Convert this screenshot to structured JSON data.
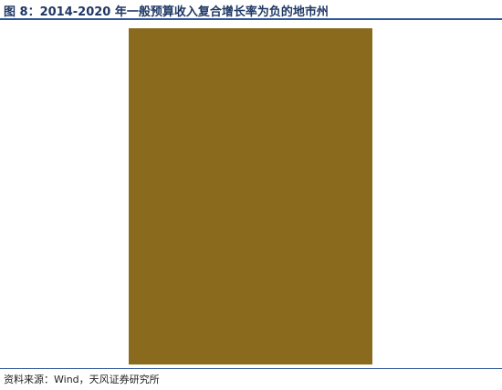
{
  "title": "图 8：2014-2020 年一般预算收入复合增长率为负的地市州",
  "source": "资料来源：Wind，天风证券研究所",
  "colors": {
    "header_bg": "#8a6b1d",
    "frame": "#8a6b1d",
    "high": "#e8463a",
    "mid": "#fff2a8",
    "low": "#f6c7a4",
    "green": "#63be7b",
    "accent_line": "#2f5597"
  },
  "chart_data": {
    "type": "table",
    "title": "",
    "headers": [],
    "rows": []
  }
}
